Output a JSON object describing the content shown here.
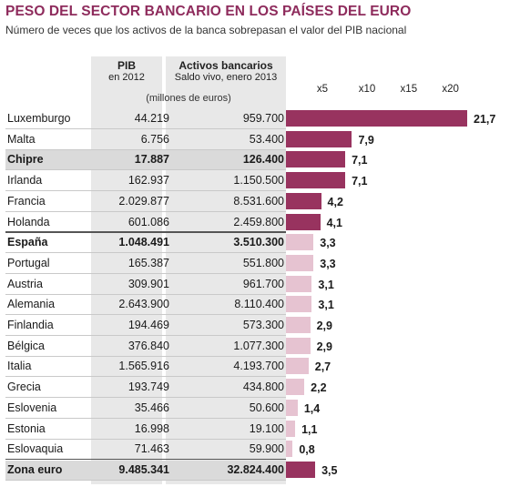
{
  "title": "PESO DEL SECTOR BANCARIO EN LOS PAÍSES DEL EURO",
  "subtitle": "Número de veces que los activos de la banca sobrepasan el valor del PIB nacional",
  "columns": {
    "pib_title": "PIB",
    "pib_sub": "en 2012",
    "act_title": "Activos bancarios",
    "act_sub": "Saldo vivo, enero 2013",
    "units": "(millones de euros)"
  },
  "colors": {
    "title": "#8e2b5c",
    "bar_dark": "#98335f",
    "bar_light": "#e6c3d1",
    "column_bg": "#e8e8e8",
    "highlight_bg": "#dadada"
  },
  "chart_data": {
    "type": "bar",
    "orientation": "horizontal",
    "title": "PESO DEL SECTOR BANCARIO EN LOS PAÍSES DEL EURO",
    "subtitle": "Número de veces que los activos de la banca sobrepasan el valor del PIB nacional",
    "x_ticks": [
      "x5",
      "x10",
      "x15",
      "x20"
    ],
    "x_tick_values": [
      5,
      10,
      15,
      20
    ],
    "xlim": [
      0,
      21.7
    ],
    "rows": [
      {
        "country": "Luxemburgo",
        "pib": "44.219",
        "activos": "959.700",
        "ratio": 21.7,
        "label": "21,7",
        "bold": false,
        "highlight": false,
        "shade": "dark"
      },
      {
        "country": "Malta",
        "pib": "6.756",
        "activos": "53.400",
        "ratio": 7.9,
        "label": "7,9",
        "bold": false,
        "highlight": false,
        "shade": "dark"
      },
      {
        "country": "Chipre",
        "pib": "17.887",
        "activos": "126.400",
        "ratio": 7.1,
        "label": "7,1",
        "bold": true,
        "highlight": true,
        "shade": "dark"
      },
      {
        "country": "Irlanda",
        "pib": "162.937",
        "activos": "1.150.500",
        "ratio": 7.1,
        "label": "7,1",
        "bold": false,
        "highlight": false,
        "shade": "dark"
      },
      {
        "country": "Francia",
        "pib": "2.029.877",
        "activos": "8.531.600",
        "ratio": 4.2,
        "label": "4,2",
        "bold": false,
        "highlight": false,
        "shade": "dark"
      },
      {
        "country": "Holanda",
        "pib": "601.086",
        "activos": "2.459.800",
        "ratio": 4.1,
        "label": "4,1",
        "bold": false,
        "highlight": false,
        "shade": "dark"
      },
      {
        "country": "España",
        "pib": "1.048.491",
        "activos": "3.510.300",
        "ratio": 3.3,
        "label": "3,3",
        "bold": true,
        "highlight": false,
        "shade": "light"
      },
      {
        "country": "Portugal",
        "pib": "165.387",
        "activos": "551.800",
        "ratio": 3.3,
        "label": "3,3",
        "bold": false,
        "highlight": false,
        "shade": "light"
      },
      {
        "country": "Austria",
        "pib": "309.901",
        "activos": "961.700",
        "ratio": 3.1,
        "label": "3,1",
        "bold": false,
        "highlight": false,
        "shade": "light"
      },
      {
        "country": "Alemania",
        "pib": "2.643.900",
        "activos": "8.110.400",
        "ratio": 3.1,
        "label": "3,1",
        "bold": false,
        "highlight": false,
        "shade": "light"
      },
      {
        "country": "Finlandia",
        "pib": "194.469",
        "activos": "573.300",
        "ratio": 2.9,
        "label": "2,9",
        "bold": false,
        "highlight": false,
        "shade": "light"
      },
      {
        "country": "Bélgica",
        "pib": "376.840",
        "activos": "1.077.300",
        "ratio": 2.9,
        "label": "2,9",
        "bold": false,
        "highlight": false,
        "shade": "light"
      },
      {
        "country": "Italia",
        "pib": "1.565.916",
        "activos": "4.193.700",
        "ratio": 2.7,
        "label": "2,7",
        "bold": false,
        "highlight": false,
        "shade": "light"
      },
      {
        "country": "Grecia",
        "pib": "193.749",
        "activos": "434.800",
        "ratio": 2.2,
        "label": "2,2",
        "bold": false,
        "highlight": false,
        "shade": "light"
      },
      {
        "country": "Eslovenia",
        "pib": "35.466",
        "activos": "50.600",
        "ratio": 1.4,
        "label": "1,4",
        "bold": false,
        "highlight": false,
        "shade": "light"
      },
      {
        "country": "Estonia",
        "pib": "16.998",
        "activos": "19.100",
        "ratio": 1.1,
        "label": "1,1",
        "bold": false,
        "highlight": false,
        "shade": "light"
      },
      {
        "country": "Eslovaquia",
        "pib": "71.463",
        "activos": "59.900",
        "ratio": 0.8,
        "label": "0,8",
        "bold": false,
        "highlight": false,
        "shade": "light"
      },
      {
        "country": "Zona euro",
        "pib": "9.485.341",
        "activos": "32.824.400",
        "ratio": 3.5,
        "label": "3,5",
        "bold": true,
        "highlight": true,
        "shade": "dark"
      }
    ]
  }
}
